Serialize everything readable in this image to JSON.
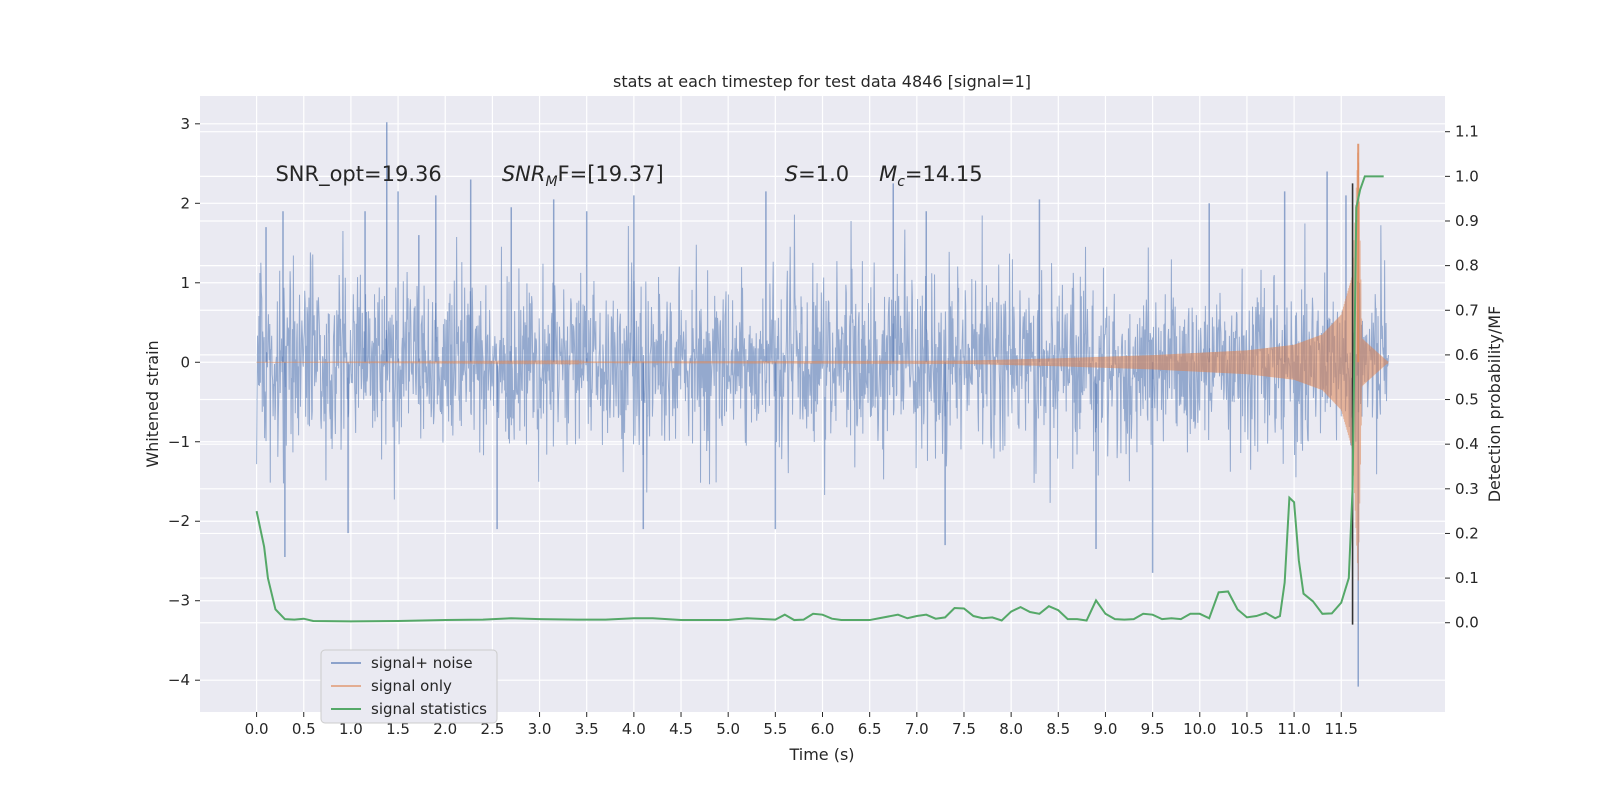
{
  "chart_data": {
    "type": "line",
    "title": "stats at each timestep for test data 4846 [signal=1]",
    "xlabel": "Time (s)",
    "ylabel": "Whitened strain",
    "y2label": "Detection probability/MF",
    "xlim": [
      -0.6,
      12.6
    ],
    "ylim": [
      -4.4,
      3.35
    ],
    "y2lim": [
      -0.2,
      1.18
    ],
    "xticks": [
      "0.0",
      "0.5",
      "1.0",
      "1.5",
      "2.0",
      "2.5",
      "3.0",
      "3.5",
      "4.0",
      "4.5",
      "5.0",
      "5.5",
      "6.0",
      "6.5",
      "7.0",
      "7.5",
      "8.0",
      "8.5",
      "9.0",
      "9.5",
      "10.0",
      "10.5",
      "11.0",
      "11.5"
    ],
    "yticks": [
      "3",
      "2",
      "1",
      "0",
      "−1",
      "−2",
      "−3",
      "−4"
    ],
    "y2ticks": [
      "1.1",
      "1.0",
      "0.9",
      "0.8",
      "0.7",
      "0.6",
      "0.5",
      "0.4",
      "0.3",
      "0.2",
      "0.1",
      "0.0"
    ],
    "grid": true,
    "legend_position": "lower-left",
    "colors": {
      "background": "#eaeaf2",
      "grid": "#ffffff",
      "noise": "#4c72b0",
      "signal": "#dd8452",
      "stats": "#55a868",
      "merger_line": "#333333"
    },
    "annotations": [
      {
        "label": "SNR_opt=19.36",
        "x": 0.2,
        "y": 2.28
      },
      {
        "label_main": "SNR",
        "label_sub": "M",
        "label_rest": "F=[19.37]",
        "x": 2.6,
        "y": 2.28
      },
      {
        "label_main": "S",
        "label_rest": "=1.0",
        "x": 5.6,
        "y": 2.28
      },
      {
        "label_main": "M",
        "label_sub": "c",
        "label_rest": "=14.15",
        "x": 6.6,
        "y": 2.28
      }
    ],
    "series": [
      {
        "name": "signal+ noise",
        "axis": "left",
        "t_range": [
          0.0,
          12.0
        ],
        "envelope_typical": [
          -0.5,
          0.6
        ],
        "max": 3.02,
        "min": -4.08,
        "spikes": [
          {
            "x": 0.1,
            "y": 1.7
          },
          {
            "x": 0.28,
            "y": 1.9
          },
          {
            "x": 0.3,
            "y": -2.45
          },
          {
            "x": 0.97,
            "y": -2.15
          },
          {
            "x": 1.15,
            "y": 1.9
          },
          {
            "x": 1.38,
            "y": 3.02
          },
          {
            "x": 1.5,
            "y": 2.15
          },
          {
            "x": 1.72,
            "y": 1.6
          },
          {
            "x": 1.9,
            "y": 2.1
          },
          {
            "x": 2.27,
            "y": 2.3
          },
          {
            "x": 2.55,
            "y": -2.1
          },
          {
            "x": 2.7,
            "y": 1.95
          },
          {
            "x": 3.15,
            "y": 2.05
          },
          {
            "x": 3.5,
            "y": 1.9
          },
          {
            "x": 4.0,
            "y": 2.1
          },
          {
            "x": 4.1,
            "y": -2.1
          },
          {
            "x": 5.4,
            "y": 2.15
          },
          {
            "x": 5.5,
            "y": -2.1
          },
          {
            "x": 6.75,
            "y": 2.25
          },
          {
            "x": 7.1,
            "y": 1.9
          },
          {
            "x": 7.3,
            "y": -2.3
          },
          {
            "x": 8.3,
            "y": 2.05
          },
          {
            "x": 8.9,
            "y": -2.35
          },
          {
            "x": 9.5,
            "y": -2.65
          },
          {
            "x": 10.1,
            "y": 2.0
          },
          {
            "x": 10.9,
            "y": 2.15
          },
          {
            "x": 11.35,
            "y": 2.4
          },
          {
            "x": 11.55,
            "y": 2.1
          },
          {
            "x": 11.68,
            "y": -4.08
          }
        ]
      },
      {
        "name": "signal only",
        "axis": "left",
        "t_range": [
          0.0,
          12.0
        ],
        "amplitude_envelope": [
          {
            "x": 0.0,
            "y": 0.0
          },
          {
            "x": 7.5,
            "y": 0.02
          },
          {
            "x": 8.5,
            "y": 0.05
          },
          {
            "x": 9.5,
            "y": 0.09
          },
          {
            "x": 10.5,
            "y": 0.15
          },
          {
            "x": 11.0,
            "y": 0.22
          },
          {
            "x": 11.3,
            "y": 0.35
          },
          {
            "x": 11.5,
            "y": 0.6
          },
          {
            "x": 11.62,
            "y": 1.1
          },
          {
            "x": 11.68,
            "y": 2.75
          },
          {
            "x": 11.72,
            "y": 0.3
          },
          {
            "x": 12.0,
            "y": 0.0
          }
        ],
        "max": 2.75
      },
      {
        "name": "signal statistics",
        "axis": "right",
        "x": [
          0.0,
          0.08,
          0.12,
          0.2,
          0.3,
          0.4,
          0.5,
          0.6,
          1.0,
          1.5,
          2.0,
          2.4,
          2.7,
          3.0,
          3.4,
          3.7,
          4.0,
          4.2,
          4.5,
          5.0,
          5.2,
          5.5,
          5.6,
          5.7,
          5.8,
          5.9,
          6.0,
          6.1,
          6.2,
          6.5,
          6.6,
          6.8,
          6.9,
          7.0,
          7.1,
          7.2,
          7.3,
          7.4,
          7.5,
          7.6,
          7.7,
          7.8,
          7.9,
          8.0,
          8.1,
          8.2,
          8.3,
          8.4,
          8.5,
          8.6,
          8.7,
          8.8,
          8.9,
          9.0,
          9.1,
          9.2,
          9.3,
          9.4,
          9.5,
          9.6,
          9.7,
          9.8,
          9.9,
          10.0,
          10.1,
          10.2,
          10.3,
          10.4,
          10.5,
          10.6,
          10.7,
          10.8,
          10.85,
          10.9,
          10.95,
          11.0,
          11.05,
          11.1,
          11.2,
          11.3,
          11.4,
          11.5,
          11.58,
          11.62,
          11.66,
          11.7,
          11.75,
          11.8,
          11.9,
          11.95
        ],
        "values": [
          0.25,
          0.17,
          0.1,
          0.03,
          0.008,
          0.007,
          0.009,
          0.004,
          0.003,
          0.004,
          0.006,
          0.007,
          0.01,
          0.008,
          0.007,
          0.007,
          0.01,
          0.01,
          0.006,
          0.006,
          0.01,
          0.007,
          0.018,
          0.006,
          0.007,
          0.02,
          0.018,
          0.009,
          0.006,
          0.006,
          0.01,
          0.018,
          0.01,
          0.015,
          0.018,
          0.009,
          0.012,
          0.033,
          0.032,
          0.015,
          0.01,
          0.012,
          0.005,
          0.025,
          0.035,
          0.024,
          0.02,
          0.037,
          0.028,
          0.008,
          0.008,
          0.005,
          0.05,
          0.02,
          0.008,
          0.007,
          0.008,
          0.02,
          0.018,
          0.008,
          0.01,
          0.008,
          0.02,
          0.02,
          0.01,
          0.068,
          0.07,
          0.03,
          0.012,
          0.015,
          0.022,
          0.01,
          0.015,
          0.09,
          0.28,
          0.27,
          0.14,
          0.065,
          0.048,
          0.02,
          0.021,
          0.045,
          0.1,
          0.3,
          0.93,
          0.97,
          1.0,
          1.0,
          1.0,
          1.0
        ]
      }
    ],
    "merger_time": 11.62
  }
}
